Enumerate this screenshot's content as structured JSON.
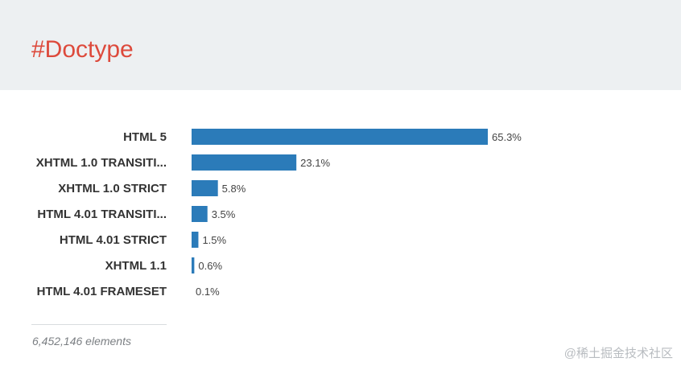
{
  "header": {
    "title": "#Doctype"
  },
  "chart_data": {
    "type": "bar",
    "orientation": "horizontal",
    "categories": [
      "HTML 5",
      "XHTML 1.0 TRANSITI...",
      "XHTML 1.0 STRICT",
      "HTML 4.01 TRANSITI...",
      "HTML 4.01 STRICT",
      "XHTML 1.1",
      "HTML 4.01 FRAMESET"
    ],
    "values": [
      65.3,
      23.1,
      5.8,
      3.5,
      1.5,
      0.6,
      0.1
    ],
    "value_labels": [
      "65.3%",
      "23.1%",
      "5.8%",
      "3.5%",
      "1.5%",
      "0.6%",
      "0.1%"
    ],
    "xlim": [
      0,
      65.3
    ],
    "grid": false,
    "legend": "none",
    "bar_color": "#2b7bb9"
  },
  "footer": {
    "count_label": "6,452,146 elements"
  },
  "watermark": {
    "text": "@稀土掘金技术社区"
  }
}
